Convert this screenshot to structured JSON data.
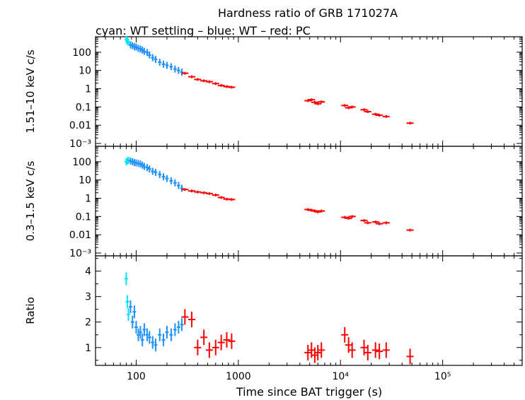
{
  "chart_data": {
    "type": "scatter",
    "title": "Hardness ratio of GRB 171027A",
    "subtitle": "cyan: WT settling – blue: WT – red: PC",
    "xlabel": "Time since BAT trigger (s)",
    "xscale": "log",
    "xlim": [
      40,
      600000
    ],
    "x_tick_labels": [
      "100",
      "1000",
      "10⁴",
      "10⁵"
    ],
    "colors": {
      "wt_settling": "#00e5ee",
      "wt": "#1e90ff",
      "pc": "#ff0000"
    },
    "panels": [
      {
        "ylabel": "1.51–10 keV c/s",
        "yscale": "log",
        "ylim": [
          0.0007,
          700
        ],
        "y_tick_labels": [
          "100",
          "10",
          "1",
          "0.1",
          "0.01",
          "10⁻³"
        ],
        "series": [
          {
            "mode": "WT settling",
            "points": [
              [
                80,
                480
              ],
              [
                82,
                400
              ],
              [
                84,
                350
              ]
            ]
          },
          {
            "mode": "WT",
            "points": [
              [
                88,
                250
              ],
              [
                92,
                230
              ],
              [
                96,
                200
              ],
              [
                100,
                190
              ],
              [
                105,
                160
              ],
              [
                110,
                150
              ],
              [
                115,
                130
              ],
              [
                120,
                110
              ],
              [
                128,
                95
              ],
              [
                135,
                70
              ],
              [
                145,
                50
              ],
              [
                155,
                40
              ],
              [
                170,
                28
              ],
              [
                185,
                22
              ],
              [
                200,
                19
              ],
              [
                220,
                16
              ],
              [
                240,
                12
              ],
              [
                260,
                10
              ],
              [
                280,
                8
              ]
            ]
          },
          {
            "mode": "PC",
            "points": [
              [
                300,
                7
              ],
              [
                350,
                4.5
              ],
              [
                400,
                3.2
              ],
              [
                460,
                2.7
              ],
              [
                520,
                2.4
              ],
              [
                600,
                1.9
              ],
              [
                680,
                1.5
              ],
              [
                770,
                1.3
              ],
              [
                860,
                1.2
              ],
              [
                4800,
                0.22
              ],
              [
                5200,
                0.25
              ],
              [
                5600,
                0.18
              ],
              [
                6000,
                0.15
              ],
              [
                6500,
                0.19
              ],
              [
                11000,
                0.12
              ],
              [
                12000,
                0.09
              ],
              [
                13000,
                0.1
              ],
              [
                17000,
                0.07
              ],
              [
                18500,
                0.055
              ],
              [
                22000,
                0.04
              ],
              [
                24000,
                0.035
              ],
              [
                28000,
                0.03
              ],
              [
                48000,
                0.013
              ]
            ]
          }
        ]
      },
      {
        "ylabel": "0.3–1.5 keV c/s",
        "yscale": "log",
        "ylim": [
          0.0007,
          700
        ],
        "y_tick_labels": [
          "100",
          "10",
          "1",
          "0.1",
          "0.01",
          "10⁻³"
        ],
        "series": [
          {
            "mode": "WT settling",
            "points": [
              [
                80,
                100
              ],
              [
                82,
                110
              ],
              [
                84,
                120
              ]
            ]
          },
          {
            "mode": "WT",
            "points": [
              [
                88,
                110
              ],
              [
                92,
                100
              ],
              [
                96,
                90
              ],
              [
                100,
                85
              ],
              [
                105,
                80
              ],
              [
                110,
                75
              ],
              [
                115,
                65
              ],
              [
                120,
                55
              ],
              [
                128,
                48
              ],
              [
                135,
                40
              ],
              [
                145,
                30
              ],
              [
                155,
                26
              ],
              [
                170,
                20
              ],
              [
                185,
                15
              ],
              [
                200,
                12
              ],
              [
                220,
                9
              ],
              [
                240,
                7
              ],
              [
                260,
                5
              ],
              [
                280,
                3.5
              ]
            ]
          },
          {
            "mode": "PC",
            "points": [
              [
                300,
                3
              ],
              [
                350,
                2.5
              ],
              [
                400,
                2.2
              ],
              [
                460,
                2.0
              ],
              [
                520,
                1.8
              ],
              [
                600,
                1.5
              ],
              [
                680,
                1.1
              ],
              [
                770,
                0.9
              ],
              [
                860,
                0.85
              ],
              [
                4800,
                0.24
              ],
              [
                5200,
                0.22
              ],
              [
                5600,
                0.2
              ],
              [
                6000,
                0.18
              ],
              [
                6500,
                0.2
              ],
              [
                11000,
                0.09
              ],
              [
                12000,
                0.08
              ],
              [
                13000,
                0.1
              ],
              [
                17000,
                0.06
              ],
              [
                18500,
                0.045
              ],
              [
                22000,
                0.05
              ],
              [
                24000,
                0.04
              ],
              [
                28000,
                0.045
              ],
              [
                48000,
                0.018
              ]
            ]
          }
        ]
      },
      {
        "ylabel": "Ratio",
        "yscale": "linear",
        "ylim": [
          0.3,
          4.6
        ],
        "y_tick_labels": [
          "1",
          "2",
          "3",
          "4"
        ],
        "series": [
          {
            "mode": "WT settling",
            "points": [
              [
                80,
                3.7
              ],
              [
                82,
                2.8
              ],
              [
                84,
                2.3
              ]
            ]
          },
          {
            "mode": "WT",
            "points": [
              [
                88,
                2.6
              ],
              [
                92,
                2.0
              ],
              [
                96,
                2.4
              ],
              [
                100,
                1.8
              ],
              [
                105,
                1.5
              ],
              [
                110,
                1.6
              ],
              [
                115,
                1.3
              ],
              [
                120,
                1.7
              ],
              [
                128,
                1.5
              ],
              [
                135,
                1.4
              ],
              [
                145,
                1.2
              ],
              [
                155,
                1.1
              ],
              [
                170,
                1.5
              ],
              [
                185,
                1.3
              ],
              [
                200,
                1.6
              ],
              [
                220,
                1.5
              ],
              [
                240,
                1.7
              ],
              [
                260,
                1.8
              ],
              [
                280,
                1.9
              ]
            ]
          },
          {
            "mode": "PC",
            "points": [
              [
                300,
                2.2
              ],
              [
                350,
                2.1
              ],
              [
                400,
                1.0
              ],
              [
                460,
                1.4
              ],
              [
                520,
                0.9
              ],
              [
                600,
                1.0
              ],
              [
                680,
                1.2
              ],
              [
                770,
                1.3
              ],
              [
                860,
                1.25
              ],
              [
                4800,
                0.8
              ],
              [
                5200,
                0.9
              ],
              [
                5600,
                0.7
              ],
              [
                6000,
                0.8
              ],
              [
                6500,
                0.9
              ],
              [
                11000,
                1.5
              ],
              [
                12000,
                1.1
              ],
              [
                13000,
                0.9
              ],
              [
                17000,
                1.0
              ],
              [
                18500,
                0.8
              ],
              [
                22000,
                0.9
              ],
              [
                24000,
                0.85
              ],
              [
                28000,
                0.9
              ],
              [
                48000,
                0.65
              ]
            ]
          }
        ]
      }
    ]
  }
}
